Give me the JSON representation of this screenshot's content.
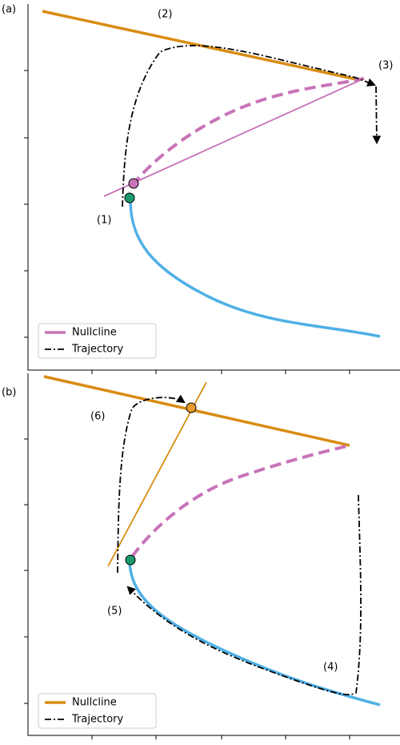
{
  "panels": [
    {
      "label": "(a)",
      "annotations": [
        "(1)",
        "(2)",
        "(3)"
      ],
      "legend": [
        "Nullcline",
        "Trajectory"
      ]
    },
    {
      "label": "(b)",
      "annotations": [
        "(4)",
        "(5)",
        "(6)"
      ],
      "legend": [
        "Nullcline",
        "Trajectory"
      ]
    }
  ]
}
